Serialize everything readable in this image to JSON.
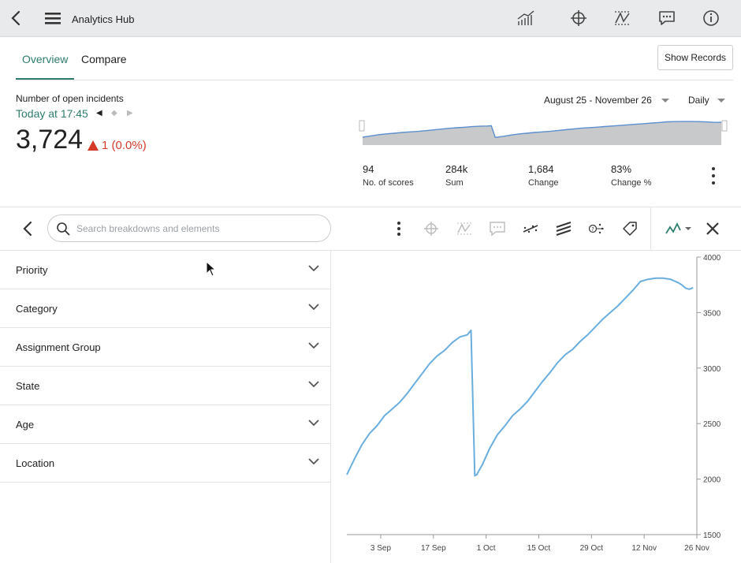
{
  "header": {
    "title": "Analytics Hub",
    "icons": [
      "back-icon",
      "menu-icon",
      "chart-icon",
      "crosshair-icon",
      "forecast-icon",
      "comments-icon",
      "info-icon"
    ]
  },
  "tabs": [
    {
      "label": "Overview",
      "active": true
    },
    {
      "label": "Compare",
      "active": false
    }
  ],
  "show_records_label": "Show Records",
  "summary": {
    "label": "Number of open incidents",
    "time": "Today at 17:45",
    "value": "3,724",
    "change": "1 (0.0%)",
    "change_color": "#d63b2a",
    "date_range": "August 25 - November 26",
    "period": "Daily"
  },
  "stats": [
    {
      "value": "94",
      "label": "No. of scores"
    },
    {
      "value": "284k",
      "label": "Sum"
    },
    {
      "value": "1,684",
      "label": "Change"
    },
    {
      "value": "83%",
      "label": "Change %"
    }
  ],
  "search": {
    "placeholder": "Search breakdowns and elements"
  },
  "breakdowns": [
    {
      "label": "Priority"
    },
    {
      "label": "Category"
    },
    {
      "label": "Assignment Group"
    },
    {
      "label": "State"
    },
    {
      "label": "Age"
    },
    {
      "label": "Location"
    }
  ],
  "accent_color": "#2e7d6e",
  "chart_data": {
    "type": "line",
    "x_tick_labels": [
      "3 Sep",
      "17 Sep",
      "1 Oct",
      "15 Oct",
      "29 Oct",
      "12 Nov",
      "26 Nov"
    ],
    "y_tick_labels": [
      "4000",
      "3500",
      "3000",
      "2500",
      "2000",
      "1500"
    ],
    "ylim": [
      1500,
      4000
    ],
    "x_range_days": [
      0,
      93
    ],
    "x_tick_days": [
      9,
      23,
      37,
      51,
      65,
      79,
      93
    ],
    "series": [
      {
        "color": "#6aaee0",
        "x": [
          0,
          2,
          4,
          6,
          8,
          10,
          12,
          14,
          16,
          18,
          20,
          22,
          24,
          26,
          28,
          30,
          32,
          33,
          34,
          34.5,
          36,
          38,
          40,
          42,
          44,
          46,
          48,
          50,
          52,
          54,
          56,
          58,
          60,
          62,
          64,
          66,
          68,
          70,
          72,
          74,
          76,
          78,
          80,
          82,
          84,
          86,
          88,
          89,
          90,
          91,
          92
        ],
        "values": [
          2040,
          2180,
          2310,
          2410,
          2480,
          2570,
          2630,
          2690,
          2770,
          2860,
          2950,
          3040,
          3110,
          3160,
          3230,
          3280,
          3300,
          3340,
          2030,
          2040,
          2130,
          2280,
          2400,
          2480,
          2570,
          2630,
          2700,
          2790,
          2880,
          2960,
          3050,
          3120,
          3170,
          3240,
          3300,
          3370,
          3440,
          3500,
          3560,
          3630,
          3700,
          3780,
          3800,
          3810,
          3810,
          3800,
          3770,
          3750,
          3720,
          3710,
          3724
        ]
      }
    ]
  }
}
